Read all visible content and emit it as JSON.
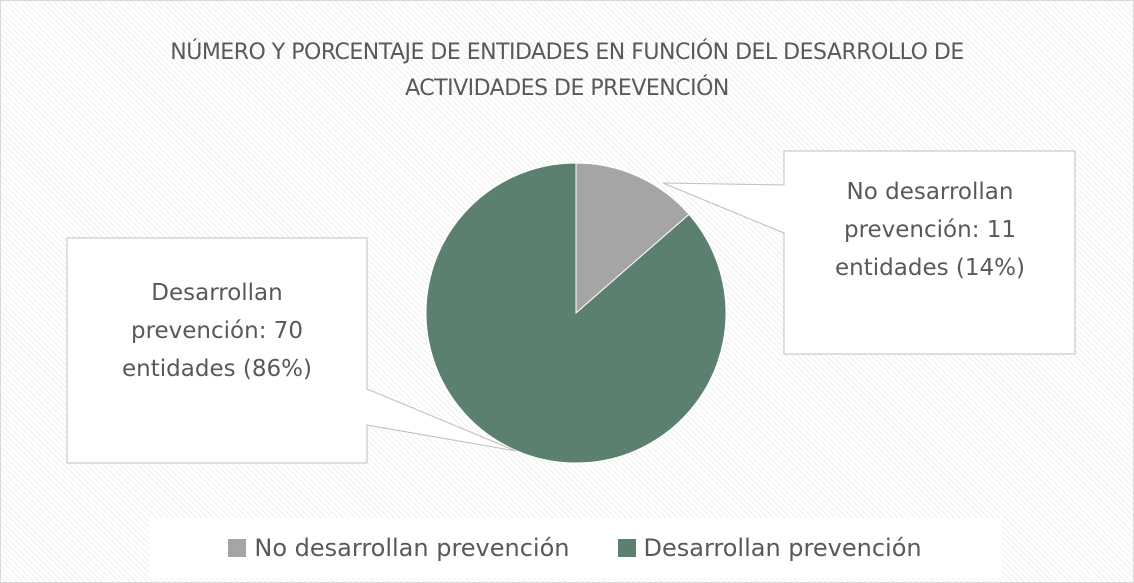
{
  "chart_data": {
    "type": "pie",
    "title": "NÚMERO Y PORCENTAJE DE ENTIDADES EN FUNCIÓN DEL DESARROLLO DE ACTIVIDADES DE PREVENCIÓN",
    "categories": [
      "No desarrollan prevención",
      "Desarrollan prevención"
    ],
    "values": [
      11,
      70
    ],
    "value_labels": [
      "No desarrollan prevención: 11 entidades (14%)",
      "Desarrollan prevención: 70 entidades (86%)"
    ],
    "colors": [
      "#a5a5a5",
      "#5b8070"
    ],
    "legend": "bottom"
  }
}
